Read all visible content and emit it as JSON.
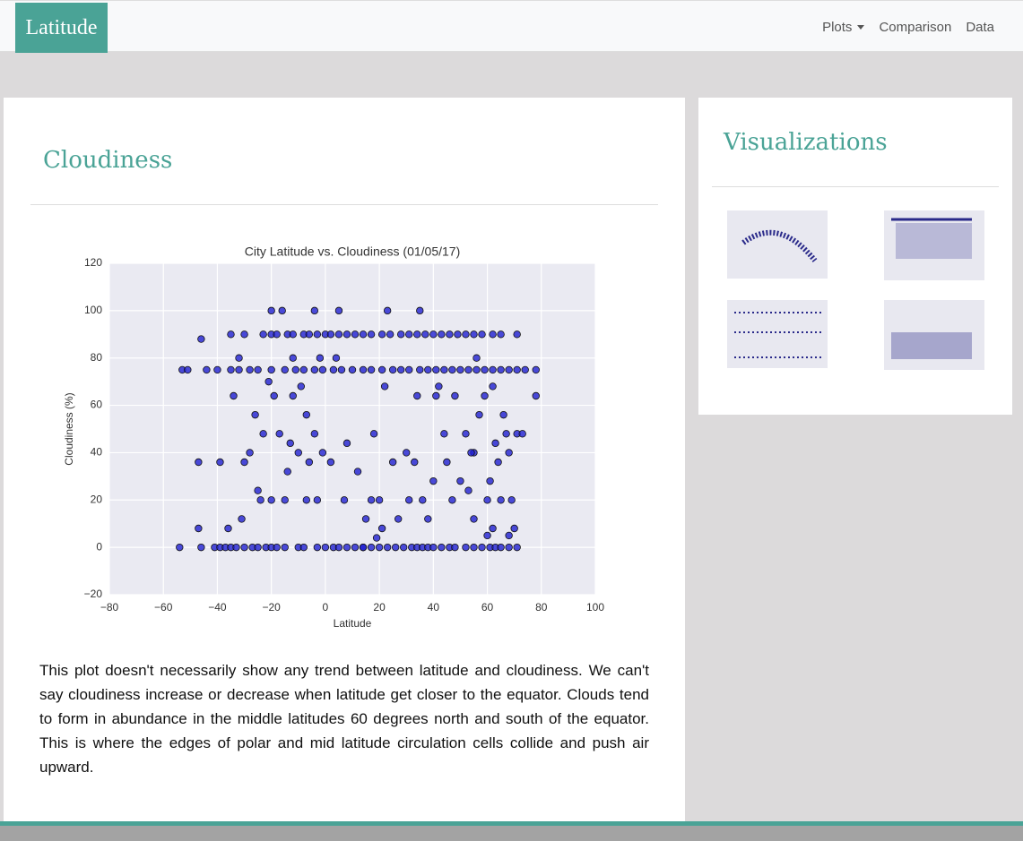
{
  "navbar": {
    "brand": "Latitude",
    "links": [
      "Plots",
      "Comparison",
      "Data"
    ]
  },
  "main": {
    "title": "Cloudiness",
    "description": "This plot doesn't necessarily show any trend between latitude and cloudiness. We can't say cloudiness increase or decrease when latitude get closer to the equator. Clouds tend to form in abundance in the middle latitudes 60 degrees north and south of the equator. This is where the edges of polar and mid latitude circulation cells collide and push air upward."
  },
  "sidebar": {
    "title": "Visualizations"
  },
  "chart_data": {
    "type": "scatter",
    "title": "City Latitude vs. Cloudiness (01/05/17)",
    "x_label": "Latitude",
    "y_label": "Cloudiness (%)",
    "color": "#1f1fd0",
    "grid": true,
    "xlim": [
      -80,
      100
    ],
    "ylim": [
      -20,
      120
    ],
    "xticks": [
      {
        "value": -80,
        "label": "−80"
      },
      {
        "value": -60,
        "label": "−60"
      },
      {
        "value": -40,
        "label": "−40"
      },
      {
        "value": -20,
        "label": "−20"
      },
      0,
      20,
      40,
      60,
      80,
      100
    ],
    "yticks": [
      {
        "value": -20,
        "label": "−20"
      },
      0,
      20,
      40,
      60,
      80,
      100,
      120
    ],
    "x": [
      -54,
      -46,
      -41,
      -39,
      -37,
      -35,
      -33,
      -30,
      -27,
      -25,
      -22,
      -20,
      -18,
      -15,
      -10,
      -8,
      -3,
      0,
      3,
      5,
      8,
      11,
      14,
      17,
      20,
      23,
      26,
      29,
      32,
      34,
      36,
      38,
      40,
      43,
      46,
      48,
      52,
      55,
      58,
      61,
      63,
      65,
      68,
      71,
      -35,
      -30,
      -23,
      -20,
      -18,
      -14,
      -12,
      -8,
      -6,
      -3,
      0,
      2,
      5,
      8,
      11,
      14,
      17,
      21,
      24,
      28,
      31,
      34,
      37,
      40,
      43,
      46,
      49,
      52,
      55,
      58,
      62,
      65,
      71,
      -53,
      -51,
      -44,
      -35,
      -32,
      -28,
      -25,
      -20,
      -15,
      -11,
      -8,
      -4,
      -1,
      3,
      6,
      10,
      14,
      17,
      21,
      25,
      28,
      31,
      35,
      38,
      41,
      44,
      47,
      50,
      53,
      56,
      59,
      62,
      65,
      68,
      71,
      74,
      78,
      -46,
      -39,
      -47,
      -40,
      -32,
      -34,
      -26,
      -23,
      -28,
      -30,
      -25,
      -24,
      -20,
      -31,
      -36,
      -47,
      -21,
      -19,
      -12,
      -17,
      -13,
      -10,
      -6,
      -14,
      -15,
      -7,
      -3,
      -7,
      -4,
      -9,
      -12,
      -16,
      -20,
      -4,
      5,
      23,
      35,
      -2,
      4,
      8,
      12,
      -1,
      2,
      7,
      15,
      17,
      18,
      20,
      21,
      22,
      25,
      27,
      30,
      31,
      33,
      34,
      36,
      38,
      40,
      42,
      44,
      45,
      48,
      50,
      52,
      53,
      55,
      55,
      56,
      57,
      59,
      60,
      61,
      62,
      63,
      64,
      65,
      66,
      67,
      68,
      69,
      70,
      71,
      73,
      78,
      62,
      14,
      41,
      47,
      19,
      60,
      68,
      54
    ],
    "values": [
      0,
      0,
      0,
      0,
      0,
      0,
      0,
      0,
      0,
      0,
      0,
      0,
      0,
      0,
      0,
      0,
      0,
      0,
      0,
      0,
      0,
      0,
      0,
      0,
      0,
      0,
      0,
      0,
      0,
      0,
      0,
      0,
      0,
      0,
      0,
      0,
      0,
      0,
      0,
      0,
      0,
      0,
      0,
      0,
      90,
      90,
      90,
      90,
      90,
      90,
      90,
      90,
      90,
      90,
      90,
      90,
      90,
      90,
      90,
      90,
      90,
      90,
      90,
      90,
      90,
      90,
      90,
      90,
      90,
      90,
      90,
      90,
      90,
      90,
      90,
      90,
      90,
      75,
      75,
      75,
      75,
      75,
      75,
      75,
      75,
      75,
      75,
      75,
      75,
      75,
      75,
      75,
      75,
      75,
      75,
      75,
      75,
      75,
      75,
      75,
      75,
      75,
      75,
      75,
      75,
      75,
      75,
      75,
      75,
      75,
      75,
      75,
      75,
      75,
      88,
      36,
      36,
      75,
      80,
      64,
      56,
      48,
      40,
      36,
      24,
      20,
      20,
      12,
      8,
      8,
      70,
      64,
      64,
      48,
      44,
      40,
      36,
      32,
      20,
      20,
      20,
      56,
      48,
      68,
      80,
      100,
      100,
      100,
      100,
      100,
      100,
      80,
      80,
      44,
      32,
      40,
      36,
      20,
      12,
      20,
      48,
      20,
      8,
      68,
      36,
      12,
      40,
      20,
      36,
      64,
      20,
      12,
      28,
      68,
      48,
      36,
      64,
      28,
      48,
      24,
      40,
      12,
      80,
      56,
      64,
      20,
      28,
      68,
      44,
      36,
      20,
      56,
      48,
      40,
      20,
      8,
      48,
      48,
      64,
      8,
      0,
      64,
      20,
      4,
      5,
      5,
      40
    ]
  }
}
